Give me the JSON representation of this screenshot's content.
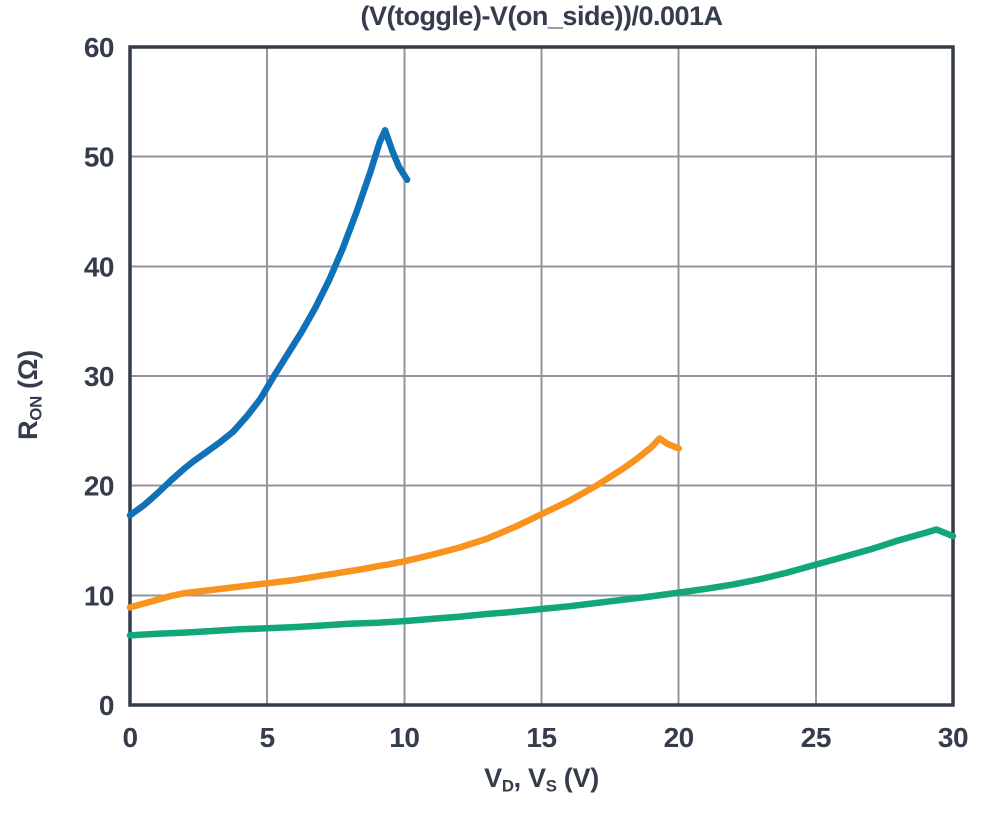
{
  "chart_data": {
    "type": "line",
    "title": "(V(toggle)-V(on_side))/0.001A",
    "xlabel": "V_D, V_S (V)",
    "ylabel": "R_ON (Ω)",
    "xlim": [
      0,
      30
    ],
    "ylim": [
      0,
      60
    ],
    "xticks": [
      0,
      5,
      10,
      15,
      20,
      25,
      30
    ],
    "yticks": [
      0,
      10,
      20,
      30,
      40,
      50,
      60
    ],
    "grid": true,
    "legend": "none",
    "series": [
      {
        "name": "blue-curve",
        "color": "#0F72B8",
        "points": [
          [
            0,
            17.3
          ],
          [
            0.5,
            18.2
          ],
          [
            1,
            19.3
          ],
          [
            1.5,
            20.5
          ],
          [
            2,
            21.6
          ],
          [
            2.3,
            22.2
          ],
          [
            2.75,
            23.0
          ],
          [
            3.25,
            23.9
          ],
          [
            3.75,
            24.9
          ],
          [
            4.25,
            26.3
          ],
          [
            4.75,
            27.9
          ],
          [
            5.25,
            30.0
          ],
          [
            5.75,
            32.0
          ],
          [
            6.25,
            34.0
          ],
          [
            6.75,
            36.2
          ],
          [
            7.25,
            38.7
          ],
          [
            7.75,
            41.6
          ],
          [
            8.25,
            44.9
          ],
          [
            8.75,
            48.5
          ],
          [
            9.1,
            51.3
          ],
          [
            9.3,
            52.4
          ],
          [
            9.55,
            50.6
          ],
          [
            9.8,
            49.1
          ],
          [
            10.1,
            47.9
          ]
        ]
      },
      {
        "name": "orange-curve",
        "color": "#F8941D",
        "points": [
          [
            0,
            8.9
          ],
          [
            0.5,
            9.25
          ],
          [
            1,
            9.6
          ],
          [
            1.5,
            9.95
          ],
          [
            2,
            10.2
          ],
          [
            2.5,
            10.35
          ],
          [
            3,
            10.5
          ],
          [
            3.5,
            10.65
          ],
          [
            4,
            10.8
          ],
          [
            4.5,
            10.95
          ],
          [
            5,
            11.1
          ],
          [
            5.5,
            11.25
          ],
          [
            6,
            11.4
          ],
          [
            6.5,
            11.6
          ],
          [
            7,
            11.8
          ],
          [
            7.5,
            12.0
          ],
          [
            8,
            12.2
          ],
          [
            8.5,
            12.4
          ],
          [
            9,
            12.65
          ],
          [
            9.5,
            12.85
          ],
          [
            10,
            13.1
          ],
          [
            11,
            13.7
          ],
          [
            12,
            14.35
          ],
          [
            13,
            15.15
          ],
          [
            14,
            16.2
          ],
          [
            15,
            17.4
          ],
          [
            16,
            18.6
          ],
          [
            17,
            20.0
          ],
          [
            18,
            21.6
          ],
          [
            18.5,
            22.5
          ],
          [
            19,
            23.5
          ],
          [
            19.3,
            24.3
          ],
          [
            19.6,
            23.8
          ],
          [
            20,
            23.4
          ]
        ]
      },
      {
        "name": "green-curve",
        "color": "#12A77B",
        "points": [
          [
            0,
            6.35
          ],
          [
            1,
            6.5
          ],
          [
            2,
            6.6
          ],
          [
            3,
            6.75
          ],
          [
            4,
            6.9
          ],
          [
            5,
            7.0
          ],
          [
            6,
            7.1
          ],
          [
            7,
            7.25
          ],
          [
            8,
            7.4
          ],
          [
            9,
            7.5
          ],
          [
            10,
            7.65
          ],
          [
            11,
            7.85
          ],
          [
            12,
            8.05
          ],
          [
            13,
            8.3
          ],
          [
            14,
            8.5
          ],
          [
            15,
            8.75
          ],
          [
            16,
            9.0
          ],
          [
            17,
            9.3
          ],
          [
            18,
            9.6
          ],
          [
            19,
            9.9
          ],
          [
            20,
            10.25
          ],
          [
            21,
            10.6
          ],
          [
            22,
            11.0
          ],
          [
            23,
            11.5
          ],
          [
            24,
            12.1
          ],
          [
            25,
            12.8
          ],
          [
            26,
            13.5
          ],
          [
            27,
            14.2
          ],
          [
            28,
            15.0
          ],
          [
            29,
            15.7
          ],
          [
            29.4,
            16.0
          ],
          [
            30,
            15.4
          ]
        ]
      }
    ]
  },
  "labels": {
    "y_base": "R",
    "y_sub": "ON",
    "y_unit": " (Ω)",
    "x_v1": "V",
    "x_s1": "D",
    "x_mid": ", V",
    "x_s2": "S",
    "x_unit": " (V)"
  },
  "colors": {
    "text": "#353C4B",
    "frame": "#343B49",
    "grid": "#94959C",
    "background": "#FFFFFF",
    "blue": "#0F72B8",
    "orange": "#F8941D",
    "green": "#12A77B"
  }
}
